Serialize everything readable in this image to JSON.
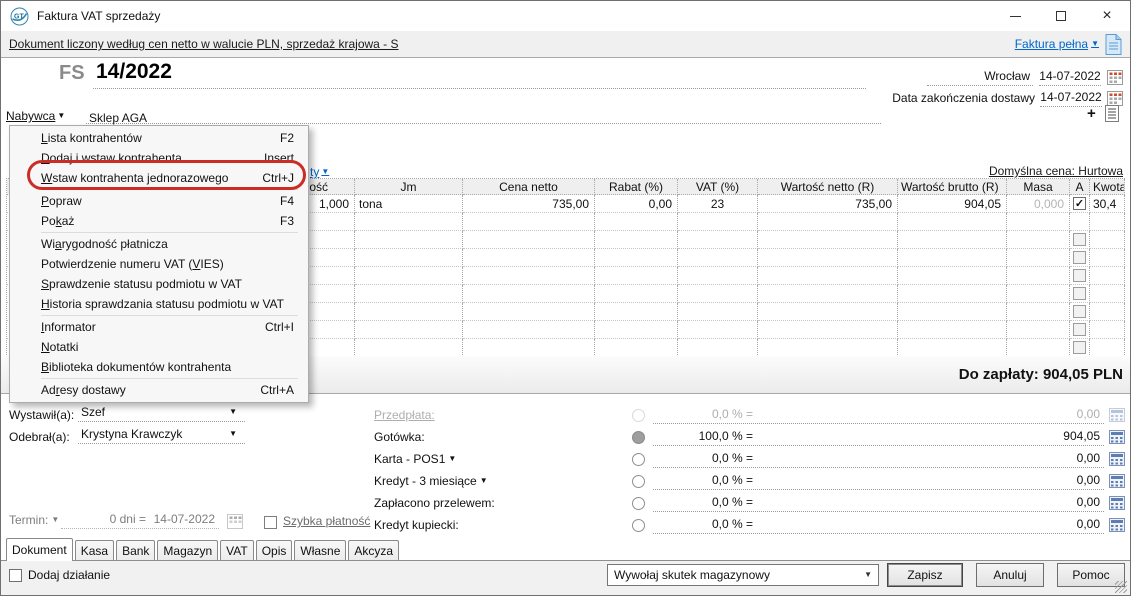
{
  "window": {
    "title": "Faktura VAT sprzedaży",
    "close_glyph": "×"
  },
  "infobar": {
    "mode_link": "Dokument liczony według cen netto w walucie PLN, sprzedaż krajowa - S",
    "type_link": "Faktura pełna"
  },
  "header": {
    "symbol": "FS",
    "number": "14/2022",
    "city": "Wrocław",
    "issue_date": "14-07-2022",
    "delivery_label": "Data zakończenia dostawy",
    "delivery_date": "14-07-2022",
    "add_glyph": "+"
  },
  "buyer": {
    "label": "Nabywca",
    "value": "Sklep AGA"
  },
  "context_menu": {
    "items": [
      {
        "label": "Lista kontrahentów",
        "u": 0,
        "shortcut": "F2"
      },
      {
        "label": "Dodaj i wstaw kontrahenta",
        "u": 0,
        "shortcut": "Insert"
      },
      {
        "label": "Wstaw kontrahenta jednorazowego",
        "u": 0,
        "shortcut": "Ctrl+J",
        "highlighted": true
      },
      {
        "separator": true
      },
      {
        "label": "Popraw",
        "u": 0,
        "shortcut": "F4"
      },
      {
        "label": "Pokaż",
        "u": 2,
        "shortcut": "F3"
      },
      {
        "separator": true
      },
      {
        "label": "Wiarygodność płatnicza",
        "u": 2
      },
      {
        "label": "Potwierdzenie numeru VAT (VIES)",
        "u": 26
      },
      {
        "label": "Sprawdzenie statusu podmiotu w VAT",
        "u": 0
      },
      {
        "label": "Historia sprawdzania statusu podmiotu w VAT",
        "u": 0
      },
      {
        "separator": true
      },
      {
        "label": "Informator",
        "u": 0,
        "shortcut": "Ctrl+I"
      },
      {
        "label": "Notatki",
        "u": 0
      },
      {
        "label": "Biblioteka dokumentów kontrahenta",
        "u": 0
      },
      {
        "separator": true
      },
      {
        "label": "Adresy dostawy",
        "u": 2,
        "shortcut": "Ctrl+A"
      }
    ]
  },
  "items_area": {
    "left_link_fragment": "ty",
    "price_link": "Domyślna cena: Hurtowa"
  },
  "items_table": {
    "columns": [
      "",
      "Ilość",
      "Jm",
      "Cena netto",
      "Rabat (%)",
      "VAT (%)",
      "Wartość netto (R)",
      "Wartość brutto (R)",
      "Masa",
      "A",
      "Kwota"
    ],
    "row": [
      "",
      "1,000",
      "tona",
      "735,00",
      "0,00",
      "23",
      "735,00",
      "904,05",
      "0,000",
      "checked",
      "30,4"
    ],
    "empty_rows": 8
  },
  "totals": {
    "due_label": "Do zapłaty:",
    "due_amount": "904,05 PLN"
  },
  "staff": {
    "issued_label": "Wystawił(a):",
    "issued_value": "Szef",
    "received_label": "Odebrał(a):",
    "received_value": "Krystyna Krawczyk"
  },
  "payments": {
    "rows": [
      {
        "label": "Przedpłata:",
        "percent": "0,0 % =",
        "amount": "0,00",
        "disabled": true,
        "link": true
      },
      {
        "label": "Gotówka:",
        "percent": "100,0 % =",
        "amount": "904,05",
        "selected": true
      },
      {
        "label": "Karta - POS1",
        "percent": "0,0 % =",
        "amount": "0,00",
        "dropdown": true
      },
      {
        "label": "Kredyt - 3 miesiące",
        "percent": "0,0 % =",
        "amount": "0,00",
        "dropdown": true
      },
      {
        "label": "Zapłacono przelewem:",
        "percent": "0,0 % =",
        "amount": "0,00"
      },
      {
        "label": "Kredyt kupiecki:",
        "percent": "0,0 % =",
        "amount": "0,00"
      }
    ]
  },
  "term": {
    "label": "Termin:",
    "days": "0 dni =",
    "date": "14-07-2022",
    "quick_payment": "Szybka płatność"
  },
  "tabs": [
    {
      "label": "Dokument",
      "active": true
    },
    {
      "label": "Kasa"
    },
    {
      "label": "Bank"
    },
    {
      "label": "Magazyn"
    },
    {
      "label": "VAT"
    },
    {
      "label": "Opis"
    },
    {
      "label": "Własne"
    },
    {
      "label": "Akcyza"
    }
  ],
  "footer": {
    "add_action": "Dodaj działanie",
    "effect_select": "Wywołaj skutek magazynowy",
    "save": "Zapisz",
    "cancel": "Anuluj",
    "help": "Pomoc"
  },
  "colors": {
    "link_blue": "#0066cc",
    "annotation_red": "#cb2c26",
    "disabled_gray": "#aeaeae"
  }
}
